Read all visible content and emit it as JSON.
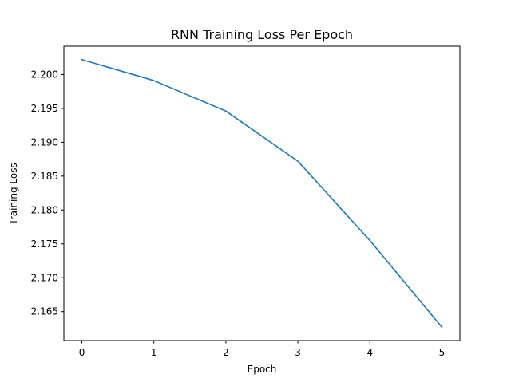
{
  "chart_data": {
    "type": "line",
    "title": "RNN Training Loss Per Epoch",
    "xlabel": "Epoch",
    "ylabel": "Training Loss",
    "x": [
      0,
      1,
      2,
      3,
      4,
      5
    ],
    "series": [
      {
        "values": [
          2.2022,
          2.1991,
          2.1946,
          2.1872,
          2.1755,
          2.1627
        ],
        "color": "#1f77b4"
      }
    ],
    "xlim": [
      -0.25,
      5.25
    ],
    "ylim": [
      2.16073,
      2.20417
    ],
    "x_ticks": [
      0,
      1,
      2,
      3,
      4,
      5
    ],
    "x_tick_labels": [
      "0",
      "1",
      "2",
      "3",
      "4",
      "5"
    ],
    "y_ticks": [
      2.165,
      2.17,
      2.175,
      2.18,
      2.185,
      2.19,
      2.195,
      2.2
    ],
    "y_tick_labels": [
      "2.165",
      "2.170",
      "2.175",
      "2.180",
      "2.185",
      "2.190",
      "2.195",
      "2.200"
    ],
    "grid": false,
    "legend": "none"
  }
}
